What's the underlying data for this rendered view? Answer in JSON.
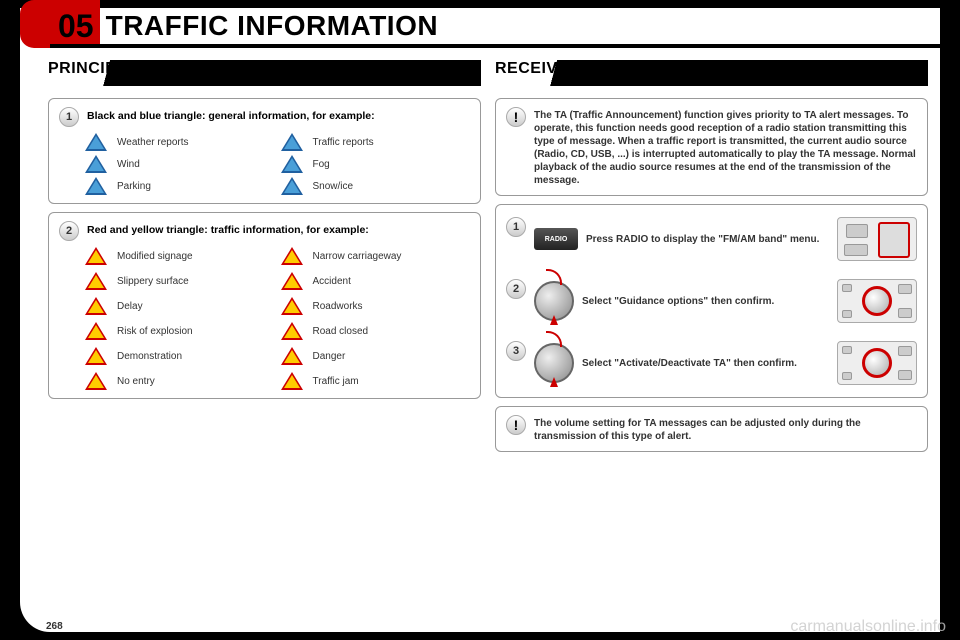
{
  "chapter_num": "05",
  "chapter_title": "TRAFFIC INFORMATION",
  "page_num": "268",
  "watermark": "carmanualsonline.info",
  "left": {
    "heading": "PRINCIPAL TMC SYMBOLS",
    "box1": {
      "num": "1",
      "title": "Black and blue triangle: general information, for example:",
      "items": [
        {
          "l": "Weather reports",
          "r": "Traffic reports"
        },
        {
          "l": "Wind",
          "r": "Fog"
        },
        {
          "l": "Parking",
          "r": "Snow/ice"
        }
      ]
    },
    "box2": {
      "num": "2",
      "title": "Red and yellow triangle: traffic information, for example:",
      "items": [
        {
          "l": "Modified signage",
          "r": "Narrow carriageway"
        },
        {
          "l": "Slippery surface",
          "r": "Accident"
        },
        {
          "l": "Delay",
          "r": "Roadworks"
        },
        {
          "l": "Risk of explosion",
          "r": "Road closed"
        },
        {
          "l": "Demonstration",
          "r": "Danger"
        },
        {
          "l": "No entry",
          "r": "Traffic jam"
        }
      ]
    }
  },
  "right": {
    "heading": "RECEIVING TA MESSAGES",
    "intro": "The TA (Traffic Announcement) function gives priority to TA alert messages. To operate, this function needs good reception of a radio station transmitting this type of message. When a traffic report is transmitted, the current audio source (Radio, CD, USB, ...) is interrupted automatically to play the TA message. Normal playback of the audio source resumes at the end of the transmission of the message.",
    "radio_label": "RADIO",
    "steps": [
      {
        "num": "1",
        "text": "Press RADIO to display the \"FM/AM band\" menu."
      },
      {
        "num": "2",
        "text": "Select \"Guidance options\" then confirm."
      },
      {
        "num": "3",
        "text": "Select \"Activate/Deactivate TA\" then confirm."
      }
    ],
    "footnote": "The volume setting for TA messages can be adjusted only during the transmission of this type of alert."
  }
}
